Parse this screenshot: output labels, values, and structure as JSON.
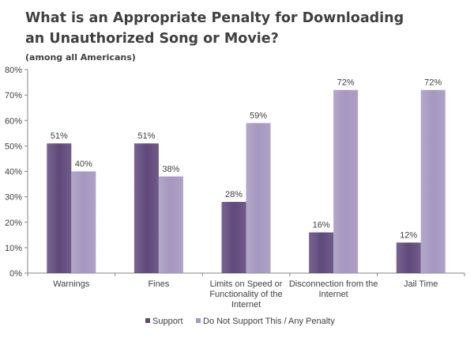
{
  "chart_data": {
    "type": "bar",
    "title_lines": [
      "What is an Appropriate Penalty for Downloading",
      "an Unauthorized Song or Movie?"
    ],
    "subtitle": "(among all Americans)",
    "categories": [
      [
        "Warnings"
      ],
      [
        "Fines"
      ],
      [
        "Limits on Speed or",
        "Functionality of the",
        "Internet"
      ],
      [
        "Disconnection from the",
        "Internet"
      ],
      [
        "Jail Time"
      ]
    ],
    "series": [
      {
        "name": "Support",
        "color": "#60497b",
        "values": [
          51,
          51,
          28,
          16,
          12
        ]
      },
      {
        "name": "Do Not Support This / Any Penalty",
        "color": "#a597c0",
        "values": [
          40,
          38,
          59,
          72,
          72
        ]
      }
    ],
    "data_labels": [
      [
        "51%",
        "51%",
        "28%",
        "16%",
        "12%"
      ],
      [
        "40%",
        "38%",
        "59%",
        "72%",
        "72%"
      ]
    ],
    "y_ticks": [
      0,
      10,
      20,
      30,
      40,
      50,
      60,
      70,
      80
    ],
    "y_tick_labels": [
      "0%",
      "10%",
      "20%",
      "30%",
      "40%",
      "50%",
      "60%",
      "70%",
      "80%"
    ],
    "ylim": [
      0,
      80
    ],
    "xlabel": "",
    "ylabel": "",
    "grid": false,
    "legend_position": "bottom"
  }
}
